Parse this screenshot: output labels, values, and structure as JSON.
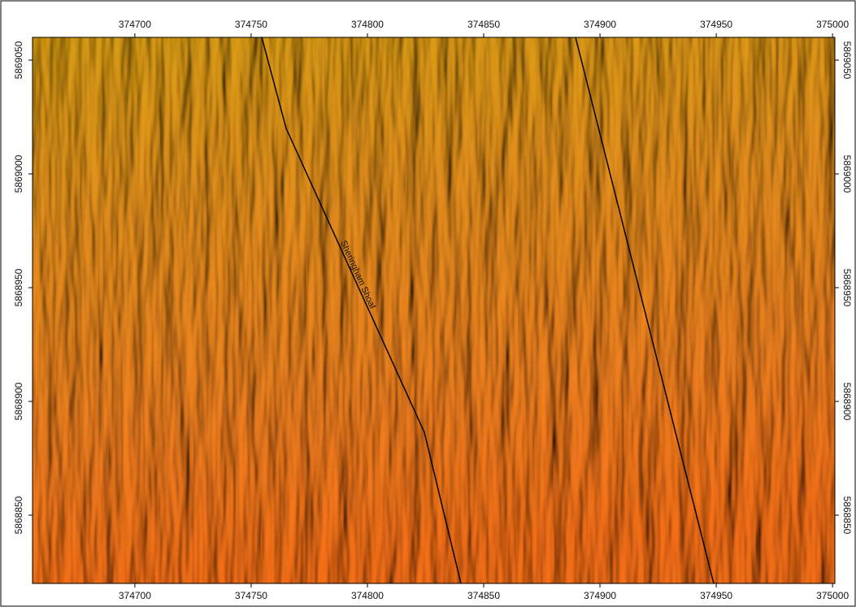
{
  "map": {
    "x_ticks": [
      374700,
      374750,
      374800,
      374850,
      374900,
      374950,
      375000
    ],
    "y_ticks": [
      5869050,
      5869000,
      5868950,
      5868900,
      5868850
    ],
    "xlim": [
      374656,
      375001
    ],
    "ylim": [
      5868820,
      5869060
    ],
    "label": "Sheringham Shoal"
  }
}
